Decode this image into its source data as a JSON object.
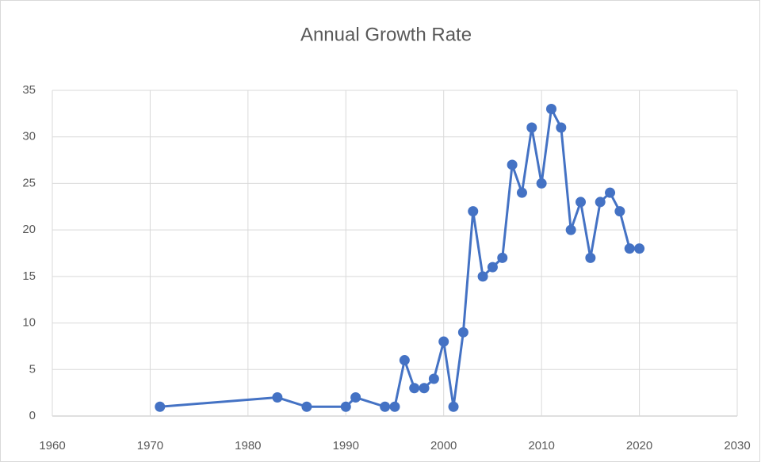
{
  "chart_data": {
    "type": "scatter",
    "title": "Annual Growth Rate",
    "lines": true,
    "x": [
      1971,
      1983,
      1986,
      1990,
      1991,
      1994,
      1995,
      1996,
      1997,
      1998,
      1999,
      2000,
      2001,
      2002,
      2003,
      2004,
      2005,
      2006,
      2007,
      2008,
      2009,
      2010,
      2011,
      2012,
      2013,
      2014,
      2015,
      2016,
      2017,
      2018,
      2019,
      2020
    ],
    "values": [
      1,
      2,
      1,
      1,
      2,
      1,
      1,
      6,
      3,
      3,
      4,
      8,
      1,
      9,
      22,
      15,
      16,
      17,
      27,
      24,
      31,
      25,
      33,
      31,
      20,
      23,
      17,
      23,
      24,
      22,
      18,
      18
    ],
    "color": "#4472c4",
    "xlim": [
      1960,
      2030
    ],
    "xticks": [
      1960,
      1970,
      1980,
      1990,
      2000,
      2010,
      2020,
      2030
    ],
    "ylim": [
      0,
      35
    ],
    "yticks": [
      0,
      5,
      10,
      15,
      20,
      25,
      30,
      35
    ],
    "grid": true
  }
}
